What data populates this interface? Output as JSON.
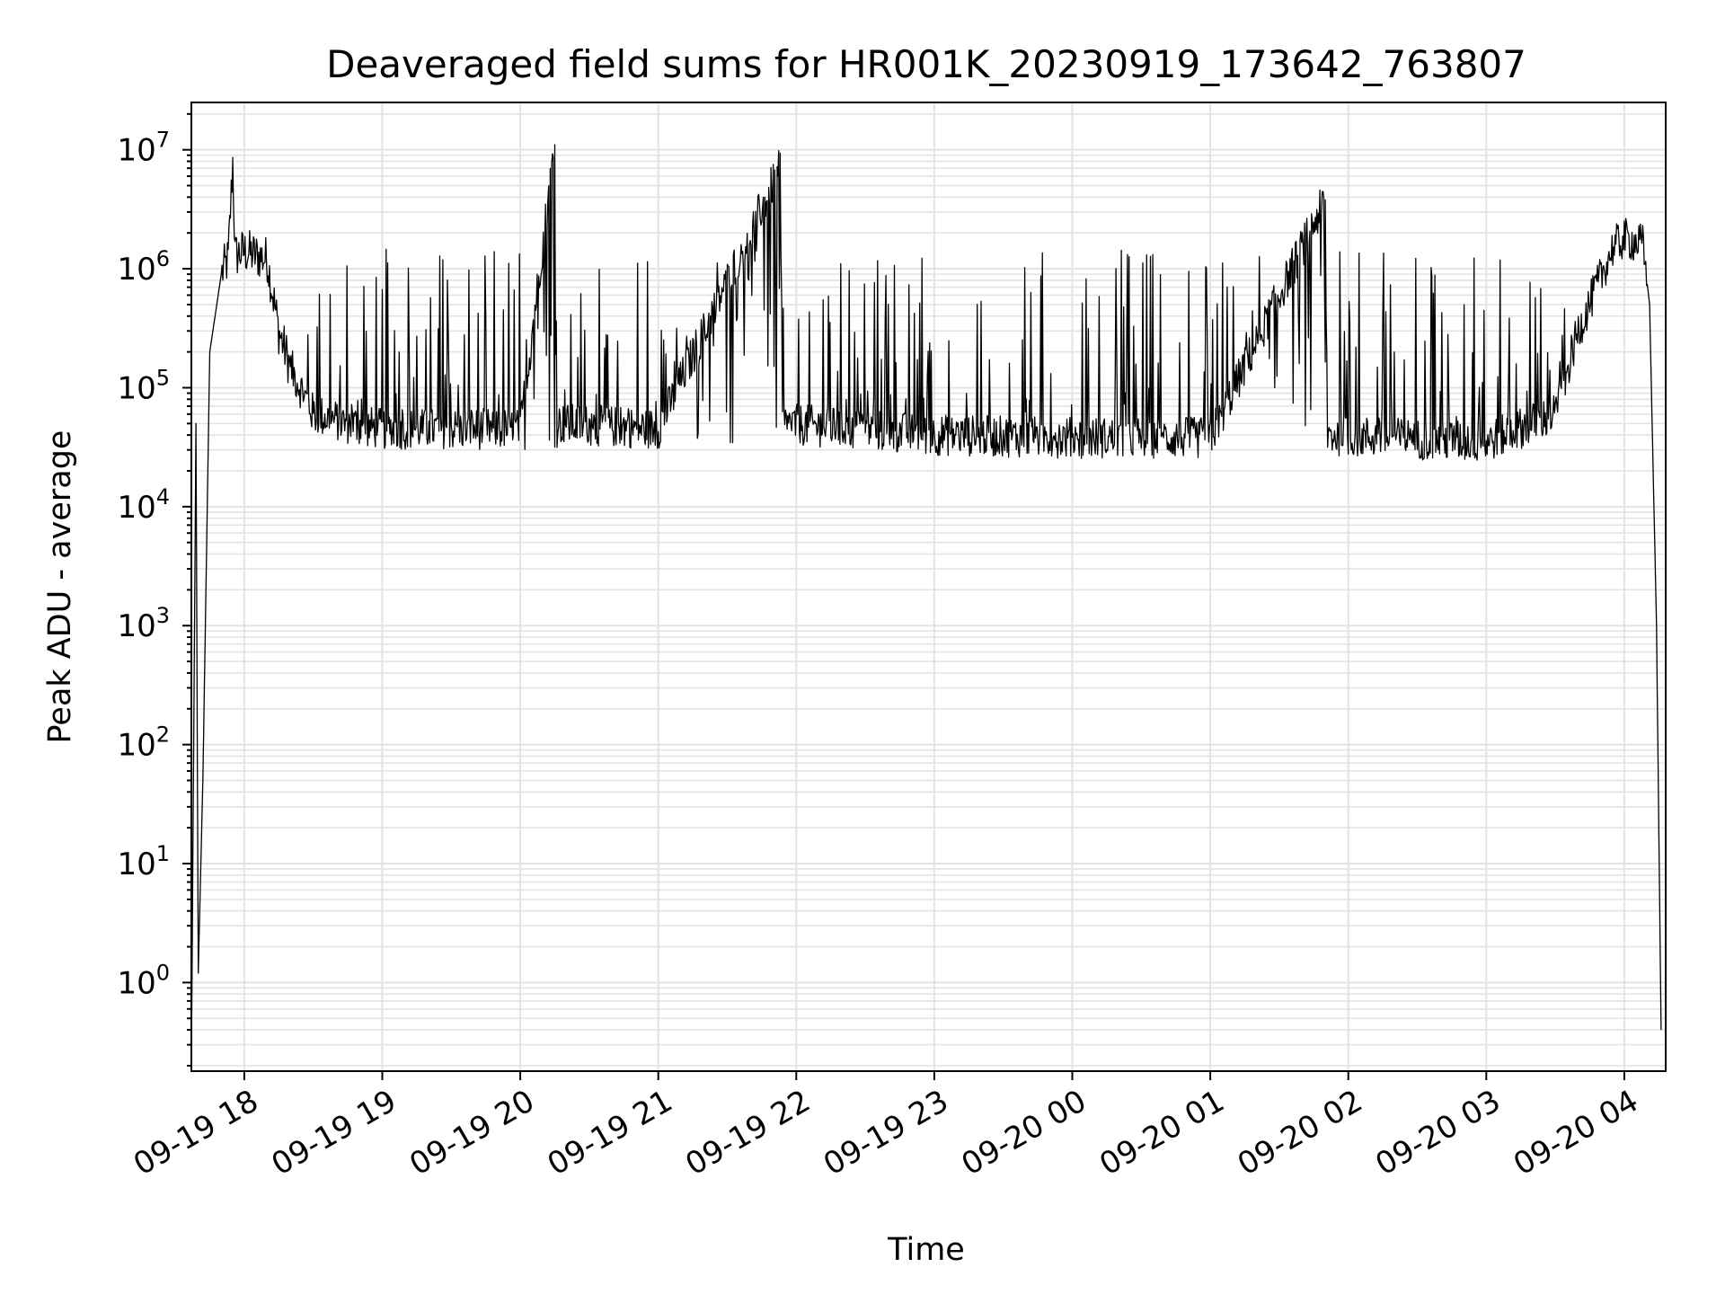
{
  "chart_data": {
    "type": "line",
    "title": "Deaveraged field sums for HR001K_20230919_173642_763807",
    "xlabel": "Time",
    "ylabel": "Peak ADU - average",
    "y_scale": "log",
    "ylim": [
      0.18,
      25000000.0
    ],
    "xlim": [
      "2023-09-19 17:37",
      "2023-09-20 04:18"
    ],
    "grid": "major and minor, light gray",
    "color": "#000000",
    "x_tick_labels": [
      "09-19 18",
      "09-19 19",
      "09-19 20",
      "09-19 21",
      "09-19 22",
      "09-19 23",
      "09-20 00",
      "09-20 01",
      "09-20 02",
      "09-20 03",
      "09-20 04"
    ],
    "y_tick_labels": [
      {
        "base": "10",
        "exp": "0"
      },
      {
        "base": "10",
        "exp": "1"
      },
      {
        "base": "10",
        "exp": "2"
      },
      {
        "base": "10",
        "exp": "3"
      },
      {
        "base": "10",
        "exp": "4"
      },
      {
        "base": "10",
        "exp": "5"
      },
      {
        "base": "10",
        "exp": "6"
      },
      {
        "base": "10",
        "exp": "7"
      }
    ],
    "series": [
      {
        "values_description_note": "",
        "points": [
          [
            "2023-09-19 17:37",
            0.2
          ],
          [
            "2023-09-19 17:39",
            50000
          ],
          [
            "2023-09-19 17:40",
            1.2
          ],
          [
            "2023-09-19 17:42",
            50
          ],
          [
            "2023-09-19 17:45",
            200000
          ],
          [
            "2023-09-19 17:50",
            900000
          ],
          [
            "2023-09-19 17:53",
            1200000
          ],
          [
            "2023-09-19 17:55",
            8000000
          ],
          [
            "2023-09-19 17:56",
            1300000
          ],
          [
            "2023-09-19 18:00",
            1400000
          ],
          [
            "2023-09-19 18:10",
            1200000
          ],
          [
            "2023-09-19 18:15",
            300000
          ],
          [
            "2023-09-19 18:20",
            150000
          ],
          [
            "2023-09-19 18:30",
            60000
          ],
          [
            "2023-09-19 18:45",
            50000
          ],
          [
            "2023-09-19 19:00",
            45000
          ],
          [
            "2023-09-19 20:00",
            45000
          ],
          [
            "2023-09-19 20:15",
            11000000
          ],
          [
            "2023-09-19 20:16",
            50000
          ],
          [
            "2023-09-19 21:00",
            45000
          ],
          [
            "2023-09-19 21:53",
            7000000
          ],
          [
            "2023-09-19 21:54",
            50000
          ],
          [
            "2023-09-19 23:00",
            40000
          ],
          [
            "2023-09-20 00:00",
            38000
          ],
          [
            "2023-09-20 01:00",
            38000
          ],
          [
            "2023-09-20 01:50",
            3800000
          ],
          [
            "2023-09-20 01:51",
            40000
          ],
          [
            "2023-09-20 03:00",
            35000
          ],
          [
            "2023-09-20 03:30",
            60000
          ],
          [
            "2023-09-20 03:40",
            300000
          ],
          [
            "2023-09-20 03:55",
            1500000
          ],
          [
            "2023-09-20 04:00",
            1800000
          ],
          [
            "2023-09-20 04:08",
            1600000
          ],
          [
            "2023-09-20 04:11",
            500000
          ],
          [
            "2023-09-20 04:14",
            1000
          ],
          [
            "2023-09-20 04:16",
            0.4
          ]
        ],
        "noise_band": {
          "low": 30000,
          "high": 1500000
        }
      }
    ]
  }
}
